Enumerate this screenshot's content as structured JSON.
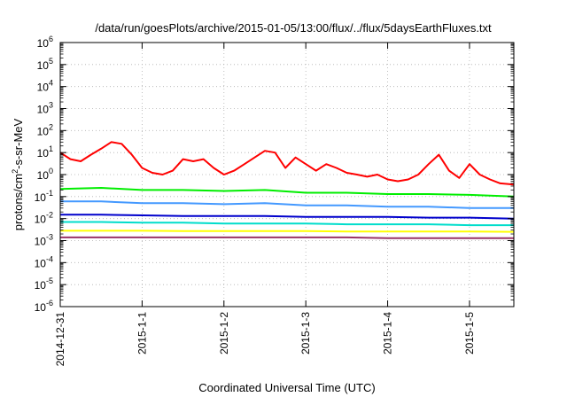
{
  "chart_data": {
    "type": "line",
    "title": "/data/run/goesPlots/archive/2015-01-05/13:00/flux/../flux/5daysEarthFluxes.txt",
    "xlabel": "Coordinated Universal Time (UTC)",
    "ylabel_parts": [
      "protons/cm",
      "2",
      "-s-sr-MeV"
    ],
    "yscale": "log",
    "ylim": [
      1e-06,
      1000000.0
    ],
    "y_ticks": [
      {
        "base": "10",
        "exp": "-6",
        "value": 1e-06
      },
      {
        "base": "10",
        "exp": "-5",
        "value": 1e-05
      },
      {
        "base": "10",
        "exp": "-4",
        "value": 0.0001
      },
      {
        "base": "10",
        "exp": "-3",
        "value": 0.001
      },
      {
        "base": "10",
        "exp": "-2",
        "value": 0.01
      },
      {
        "base": "10",
        "exp": "-1",
        "value": 0.1
      },
      {
        "base": "10",
        "exp": "0",
        "value": 1
      },
      {
        "base": "10",
        "exp": "1",
        "value": 10
      },
      {
        "base": "10",
        "exp": "2",
        "value": 100
      },
      {
        "base": "10",
        "exp": "3",
        "value": 1000
      },
      {
        "base": "10",
        "exp": "4",
        "value": 10000
      },
      {
        "base": "10",
        "exp": "5",
        "value": 100000
      },
      {
        "base": "10",
        "exp": "6",
        "value": 1000000
      }
    ],
    "xlim": [
      "2014-12-31 00:00",
      "2015-01-05 13:00"
    ],
    "x_ticks": [
      {
        "label": "2014-12-31",
        "value": "2014-12-31"
      },
      {
        "label": "2015-1-1",
        "value": "2015-01-01"
      },
      {
        "label": "2015-1-2",
        "value": "2015-01-02"
      },
      {
        "label": "2015-1-3",
        "value": "2015-01-03"
      },
      {
        "label": "2015-1-4",
        "value": "2015-01-04"
      },
      {
        "label": "2015-1-5",
        "value": "2015-01-05"
      }
    ],
    "grid": true,
    "legend": "none",
    "series": [
      {
        "color": "#ff0000",
        "points": [
          [
            "2014-12-31 00:00",
            10
          ],
          [
            "2014-12-31 03:00",
            5
          ],
          [
            "2014-12-31 06:00",
            4
          ],
          [
            "2014-12-31 09:00",
            8
          ],
          [
            "2014-12-31 12:00",
            15
          ],
          [
            "2014-12-31 15:00",
            30
          ],
          [
            "2014-12-31 18:00",
            25
          ],
          [
            "2014-12-31 21:00",
            8
          ],
          [
            "2015-01-01 00:00",
            2
          ],
          [
            "2015-01-01 03:00",
            1.2
          ],
          [
            "2015-01-01 06:00",
            1.0
          ],
          [
            "2015-01-01 09:00",
            1.5
          ],
          [
            "2015-01-01 12:00",
            5
          ],
          [
            "2015-01-01 15:00",
            4
          ],
          [
            "2015-01-01 18:00",
            5
          ],
          [
            "2015-01-01 21:00",
            2
          ],
          [
            "2015-01-02 00:00",
            1.0
          ],
          [
            "2015-01-02 03:00",
            1.5
          ],
          [
            "2015-01-02 06:00",
            3
          ],
          [
            "2015-01-02 09:00",
            6
          ],
          [
            "2015-01-02 12:00",
            12
          ],
          [
            "2015-01-02 15:00",
            10
          ],
          [
            "2015-01-02 18:00",
            2
          ],
          [
            "2015-01-02 21:00",
            6
          ],
          [
            "2015-01-03 00:00",
            3
          ],
          [
            "2015-01-03 03:00",
            1.5
          ],
          [
            "2015-01-03 06:00",
            3
          ],
          [
            "2015-01-03 09:00",
            2
          ],
          [
            "2015-01-03 12:00",
            1.2
          ],
          [
            "2015-01-03 15:00",
            1.0
          ],
          [
            "2015-01-03 18:00",
            0.8
          ],
          [
            "2015-01-03 21:00",
            1.0
          ],
          [
            "2015-01-04 00:00",
            0.6
          ],
          [
            "2015-01-04 03:00",
            0.5
          ],
          [
            "2015-01-04 06:00",
            0.6
          ],
          [
            "2015-01-04 09:00",
            1.0
          ],
          [
            "2015-01-04 12:00",
            3
          ],
          [
            "2015-01-04 15:00",
            8
          ],
          [
            "2015-01-04 18:00",
            1.5
          ],
          [
            "2015-01-04 21:00",
            0.7
          ],
          [
            "2015-01-05 00:00",
            3
          ],
          [
            "2015-01-05 03:00",
            1.0
          ],
          [
            "2015-01-05 06:00",
            0.6
          ],
          [
            "2015-01-05 09:00",
            0.4
          ],
          [
            "2015-01-05 13:00",
            0.35
          ]
        ]
      },
      {
        "color": "#00ee00",
        "points": [
          [
            "2014-12-31 00:00",
            0.22
          ],
          [
            "2014-12-31 12:00",
            0.25
          ],
          [
            "2015-01-01 00:00",
            0.2
          ],
          [
            "2015-01-01 12:00",
            0.2
          ],
          [
            "2015-01-02 00:00",
            0.18
          ],
          [
            "2015-01-02 12:00",
            0.2
          ],
          [
            "2015-01-03 00:00",
            0.15
          ],
          [
            "2015-01-03 12:00",
            0.15
          ],
          [
            "2015-01-04 00:00",
            0.13
          ],
          [
            "2015-01-04 12:00",
            0.13
          ],
          [
            "2015-01-05 00:00",
            0.12
          ],
          [
            "2015-01-05 13:00",
            0.1
          ]
        ]
      },
      {
        "color": "#4499ff",
        "points": [
          [
            "2014-12-31 00:00",
            0.06
          ],
          [
            "2014-12-31 12:00",
            0.06
          ],
          [
            "2015-01-01 00:00",
            0.05
          ],
          [
            "2015-01-01 12:00",
            0.05
          ],
          [
            "2015-01-02 00:00",
            0.045
          ],
          [
            "2015-01-02 12:00",
            0.05
          ],
          [
            "2015-01-03 00:00",
            0.04
          ],
          [
            "2015-01-03 12:00",
            0.04
          ],
          [
            "2015-01-04 00:00",
            0.035
          ],
          [
            "2015-01-04 12:00",
            0.035
          ],
          [
            "2015-01-05 00:00",
            0.03
          ],
          [
            "2015-01-05 13:00",
            0.03
          ]
        ]
      },
      {
        "color": "#0000cc",
        "points": [
          [
            "2014-12-31 00:00",
            0.015
          ],
          [
            "2014-12-31 12:00",
            0.015
          ],
          [
            "2015-01-01 00:00",
            0.014
          ],
          [
            "2015-01-01 12:00",
            0.013
          ],
          [
            "2015-01-02 00:00",
            0.013
          ],
          [
            "2015-01-02 12:00",
            0.013
          ],
          [
            "2015-01-03 00:00",
            0.012
          ],
          [
            "2015-01-03 12:00",
            0.012
          ],
          [
            "2015-01-04 00:00",
            0.012
          ],
          [
            "2015-01-04 12:00",
            0.011
          ],
          [
            "2015-01-05 00:00",
            0.011
          ],
          [
            "2015-01-05 13:00",
            0.01
          ]
        ]
      },
      {
        "color": "#00ddcc",
        "points": [
          [
            "2014-12-31 00:00",
            0.007
          ],
          [
            "2014-12-31 12:00",
            0.007
          ],
          [
            "2015-01-01 00:00",
            0.0065
          ],
          [
            "2015-01-01 12:00",
            0.0065
          ],
          [
            "2015-01-02 00:00",
            0.006
          ],
          [
            "2015-01-02 12:00",
            0.006
          ],
          [
            "2015-01-03 00:00",
            0.006
          ],
          [
            "2015-01-03 12:00",
            0.0055
          ],
          [
            "2015-01-04 00:00",
            0.0055
          ],
          [
            "2015-01-04 12:00",
            0.0055
          ],
          [
            "2015-01-05 00:00",
            0.005
          ],
          [
            "2015-01-05 13:00",
            0.005
          ]
        ]
      },
      {
        "color": "#ffff00",
        "points": [
          [
            "2014-12-31 00:00",
            0.0028
          ],
          [
            "2014-12-31 12:00",
            0.0028
          ],
          [
            "2015-01-01 00:00",
            0.0028
          ],
          [
            "2015-01-01 12:00",
            0.0027
          ],
          [
            "2015-01-02 00:00",
            0.0027
          ],
          [
            "2015-01-02 12:00",
            0.0027
          ],
          [
            "2015-01-03 00:00",
            0.0027
          ],
          [
            "2015-01-03 12:00",
            0.0026
          ],
          [
            "2015-01-04 00:00",
            0.0026
          ],
          [
            "2015-01-04 12:00",
            0.0026
          ],
          [
            "2015-01-05 00:00",
            0.0026
          ],
          [
            "2015-01-05 13:00",
            0.0025
          ]
        ]
      },
      {
        "color": "#993366",
        "points": [
          [
            "2014-12-31 00:00",
            0.0014
          ],
          [
            "2014-12-31 12:00",
            0.0014
          ],
          [
            "2015-01-01 00:00",
            0.0014
          ],
          [
            "2015-01-01 12:00",
            0.0014
          ],
          [
            "2015-01-02 00:00",
            0.0014
          ],
          [
            "2015-01-02 12:00",
            0.0014
          ],
          [
            "2015-01-03 00:00",
            0.0014
          ],
          [
            "2015-01-03 12:00",
            0.0014
          ],
          [
            "2015-01-04 00:00",
            0.0013
          ],
          [
            "2015-01-04 12:00",
            0.0013
          ],
          [
            "2015-01-05 00:00",
            0.0013
          ],
          [
            "2015-01-05 13:00",
            0.0013
          ]
        ]
      }
    ]
  }
}
